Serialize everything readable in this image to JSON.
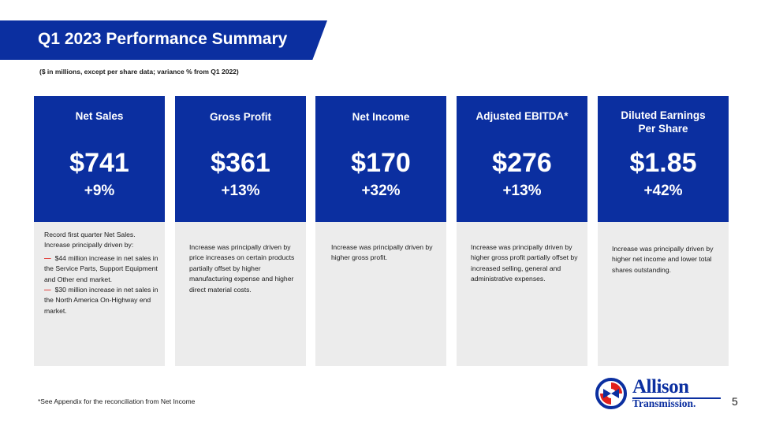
{
  "header": {
    "title": "Q1 2023 Performance Summary",
    "subtitle": "($ in millions, except per share data; variance % from Q1 2022)"
  },
  "cards": [
    {
      "label": "Net Sales",
      "value": "$741",
      "change": "+9%",
      "description": "Record first quarter Net Sales. Increase principally driven by:",
      "bullets": [
        "$44 million increase in net sales in the Service Parts, Support Equipment and Other end market.",
        "$30 million increase in net sales in the North America On-Highway end market."
      ]
    },
    {
      "label": "Gross Profit",
      "value": "$361",
      "change": "+13%",
      "description": "Increase was principally driven by price increases on certain products partially offset by higher manufacturing expense and higher direct material costs."
    },
    {
      "label": "Net Income",
      "value": "$170",
      "change": "+32%",
      "description": "Increase was principally driven by higher gross profit."
    },
    {
      "label": "Adjusted EBITDA*",
      "value": "$276",
      "change": "+13%",
      "description": "Increase was principally driven by higher gross profit partially offset by increased selling, general and administrative expenses."
    },
    {
      "label_line1": "Diluted Earnings",
      "label_line2": "Per Share",
      "value": "$1.85",
      "change": "+42%",
      "description": "Increase was principally driven by higher net income and lower total shares outstanding."
    }
  ],
  "footer": {
    "footnote": "*See Appendix for the reconciliation from Net Income",
    "page_number": "5"
  },
  "logo": {
    "line1": "Allison",
    "line2": "Transmission."
  },
  "colors": {
    "brand_blue": "#0b2fa0",
    "accent_red": "#e0201c",
    "panel_gray": "#ececec"
  }
}
